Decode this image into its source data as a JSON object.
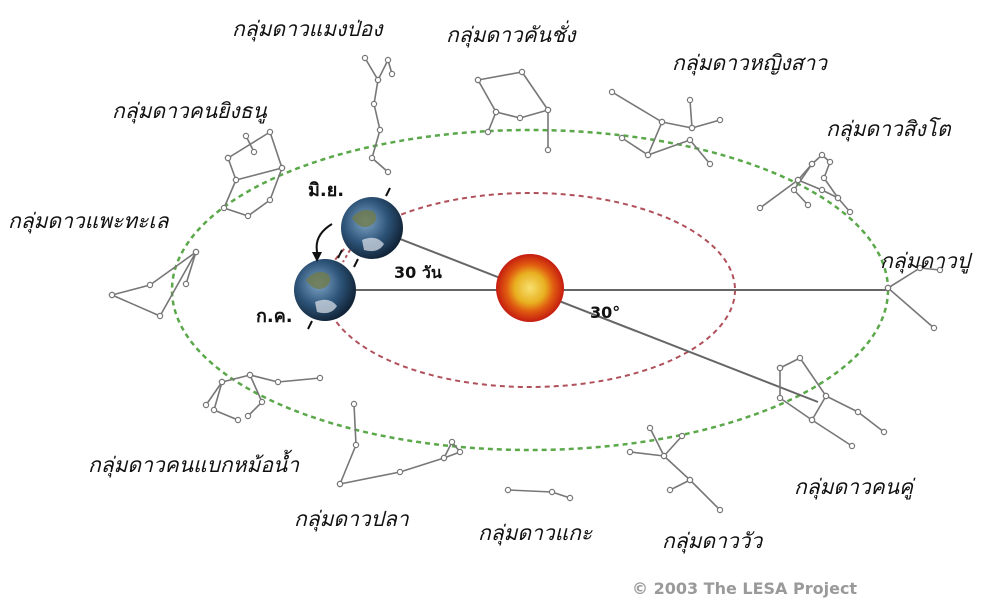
{
  "constellations": {
    "leo": "กลุ่มดาวสิงโต",
    "virgo": "กลุ่มดาวหญิงสาว",
    "libra": "กลุ่มดาวคันชั่ง",
    "scorpius": "กลุ่มดาวแมงป่อง",
    "sagittarius": "กลุ่มดาวคนยิงธนู",
    "capricornus": "กลุ่มดาวแพะทะเล",
    "aquarius": "กลุ่มดาวคนแบกหม้อน้ำ",
    "pisces": "กลุ่มดาวปลา",
    "aries": "กลุ่มดาวแกะ",
    "taurus": "กลุ่มดาววัว",
    "gemini": "กลุ่มดาวคนคู่",
    "cancer": "กลุ่มดาวปู"
  },
  "earth_positions": {
    "june": "มิ.ย.",
    "july": "ก.ค."
  },
  "angles": {
    "days": "30 วัน",
    "degrees": "30°"
  },
  "copyright": "© 2003  The LESA Project",
  "colors": {
    "outer_orbit": "#5aa84a",
    "inner_orbit": "#b0505a",
    "sun_outer": "#d42a10",
    "sun_inner": "#f0c020",
    "lines": "#666666"
  }
}
